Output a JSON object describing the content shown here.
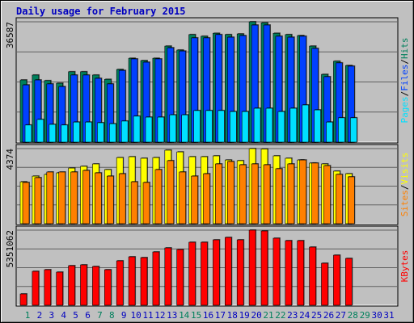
{
  "title": "Daily usage for February 2015",
  "chart_data": [
    {
      "type": "bar",
      "ylim": [
        0,
        36587
      ],
      "yticks": [
        36587
      ],
      "grid": true,
      "legend_separator": "/",
      "series": [
        {
          "name": "Pages",
          "color": "#00e0ff",
          "values": [
            5200,
            6900,
            5400,
            5200,
            6100,
            6100,
            5900,
            5600,
            6400,
            7900,
            7600,
            7600,
            8300,
            8300,
            9600,
            9600,
            9600,
            9300,
            9300,
            10300,
            10300,
            9300,
            10300,
            11300,
            9800,
            6100,
            7400,
            7400,
            null,
            null,
            null
          ]
        },
        {
          "name": "Files",
          "color": "#0040ff",
          "values": [
            17400,
            18900,
            17700,
            16900,
            20400,
            20400,
            19400,
            17700,
            21800,
            25300,
            24300,
            25300,
            28700,
            27700,
            31700,
            31700,
            32700,
            31900,
            32400,
            35600,
            35600,
            32200,
            31900,
            32200,
            28500,
            19900,
            24100,
            23100,
            null,
            null,
            null
          ]
        },
        {
          "name": "Hits",
          "color": "#00805c",
          "values": [
            18900,
            20400,
            18700,
            17900,
            21400,
            21400,
            20400,
            19100,
            22100,
            25500,
            24800,
            25500,
            29200,
            28000,
            32700,
            32200,
            33100,
            32700,
            32900,
            36587,
            36300,
            33100,
            32700,
            32400,
            29200,
            20600,
            24600,
            23300,
            null,
            null,
            null
          ]
        }
      ]
    },
    {
      "type": "bar",
      "ylim": [
        0,
        4374
      ],
      "yticks": [
        4374
      ],
      "grid": true,
      "legend_separator": "/",
      "series": [
        {
          "name": "Sites",
          "color": "#ff8000",
          "values": [
            2400,
            2680,
            3010,
            3010,
            3010,
            3100,
            2960,
            2770,
            2910,
            2440,
            2400,
            3150,
            3670,
            3010,
            2770,
            2910,
            3480,
            3620,
            3430,
            3480,
            3430,
            3200,
            3480,
            3710,
            3530,
            3380,
            2870,
            2730,
            null,
            null,
            null
          ]
        },
        {
          "name": "Visits",
          "color": "#ffff00",
          "values": [
            2440,
            2770,
            2870,
            2960,
            3240,
            3340,
            3480,
            3150,
            3850,
            3900,
            3810,
            3850,
            4280,
            4180,
            3900,
            3900,
            3950,
            3710,
            3670,
            4374,
            4350,
            3950,
            3810,
            3710,
            3530,
            3480,
            3060,
            2910,
            null,
            null,
            null
          ]
        }
      ]
    },
    {
      "type": "bar",
      "ylim": [
        0,
        5351062
      ],
      "yticks": [
        5351062
      ],
      "grid": true,
      "categories": [
        "1",
        "2",
        "3",
        "4",
        "5",
        "6",
        "7",
        "8",
        "9",
        "10",
        "11",
        "12",
        "13",
        "14",
        "15",
        "16",
        "17",
        "18",
        "19",
        "20",
        "21",
        "22",
        "23",
        "24",
        "25",
        "26",
        "27",
        "28",
        "29",
        "30",
        "31"
      ],
      "category_color": "#0000c0",
      "highlight_color": "#00805c",
      "highlighted_categories": [
        0,
        6,
        7,
        13,
        14,
        20,
        21,
        27,
        28
      ],
      "series": [
        {
          "name": "KBytes",
          "color": "#ff0000",
          "values": [
            806000,
            2417000,
            2532000,
            2359000,
            2819000,
            2877000,
            2762000,
            2532000,
            3165000,
            3452000,
            3395000,
            3798000,
            4085000,
            3970000,
            4488000,
            4488000,
            4661000,
            4833000,
            4661000,
            5351062,
            5293000,
            4776000,
            4603000,
            4603000,
            4143000,
            2992000,
            3567000,
            3337000,
            null,
            null,
            null
          ]
        }
      ]
    }
  ]
}
